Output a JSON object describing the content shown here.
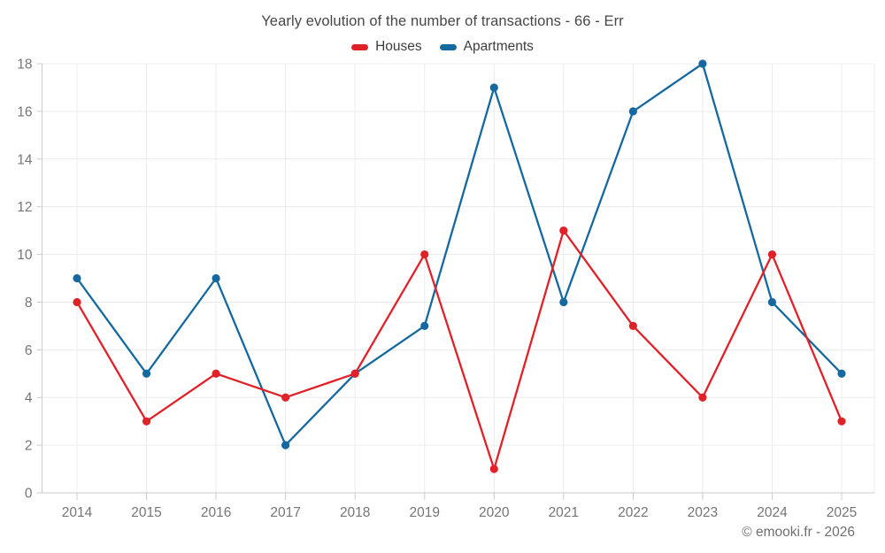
{
  "page": {
    "footer": "© emooki.fr - 2026"
  },
  "chart_data": {
    "type": "line",
    "title": "Yearly evolution of the number of transactions - 66 - Err",
    "categories": [
      "2014",
      "2015",
      "2016",
      "2017",
      "2018",
      "2019",
      "2020",
      "2021",
      "2022",
      "2023",
      "2024",
      "2025"
    ],
    "series": [
      {
        "name": "Houses",
        "color": "#e02128",
        "values": [
          8,
          3,
          5,
          4,
          5,
          10,
          1,
          11,
          7,
          4,
          10,
          3
        ]
      },
      {
        "name": "Apartments",
        "color": "#16699e",
        "values": [
          9,
          5,
          9,
          2,
          5,
          7,
          17,
          8,
          16,
          18,
          8,
          5
        ]
      }
    ],
    "xlabel": "",
    "ylabel": "",
    "ylim": [
      0,
      18
    ],
    "ytick_step": 2,
    "grid": true,
    "legend_position": "top",
    "marker": "circle",
    "grid_color": "#ececec",
    "axis_color": "#cbcbcb",
    "tick_label_color": "#757575"
  }
}
